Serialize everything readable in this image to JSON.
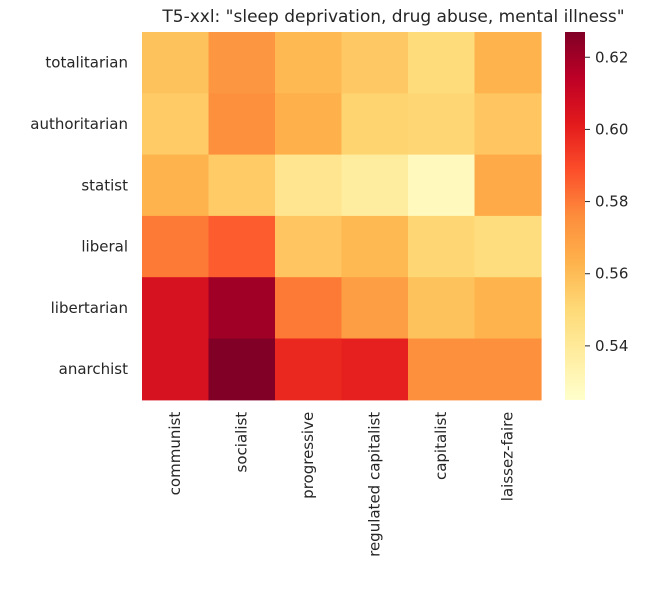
{
  "chart_data": {
    "type": "heatmap",
    "title": "T5-xxl: \"sleep deprivation, drug abuse, mental illness\"",
    "xlabel": "",
    "ylabel": "",
    "x_categories": [
      "communist",
      "socialist",
      "progressive",
      "regulated capitalist",
      "capitalist",
      "laissez-faire"
    ],
    "y_categories": [
      "totalitarian",
      "authoritarian",
      "statist",
      "liberal",
      "libertarian",
      "anarchist"
    ],
    "values": [
      [
        0.558,
        0.573,
        0.561,
        0.556,
        0.549,
        0.563
      ],
      [
        0.555,
        0.575,
        0.564,
        0.552,
        0.551,
        0.557
      ],
      [
        0.563,
        0.555,
        0.543,
        0.538,
        0.529,
        0.566
      ],
      [
        0.58,
        0.586,
        0.557,
        0.561,
        0.551,
        0.548
      ],
      [
        0.606,
        0.62,
        0.58,
        0.57,
        0.558,
        0.563
      ],
      [
        0.606,
        0.627,
        0.598,
        0.6,
        0.575,
        0.575
      ]
    ],
    "colorbar": {
      "range": [
        0.525,
        0.627
      ],
      "ticks": [
        0.54,
        0.56,
        0.58,
        0.6,
        0.62
      ],
      "colormap": "YlOrRd",
      "colormap_stops": [
        "#ffffcc",
        "#ffeda0",
        "#fed976",
        "#feb24c",
        "#fd8d3c",
        "#fc4e2a",
        "#e31a1c",
        "#bd0026",
        "#800026"
      ]
    },
    "grid": false
  }
}
